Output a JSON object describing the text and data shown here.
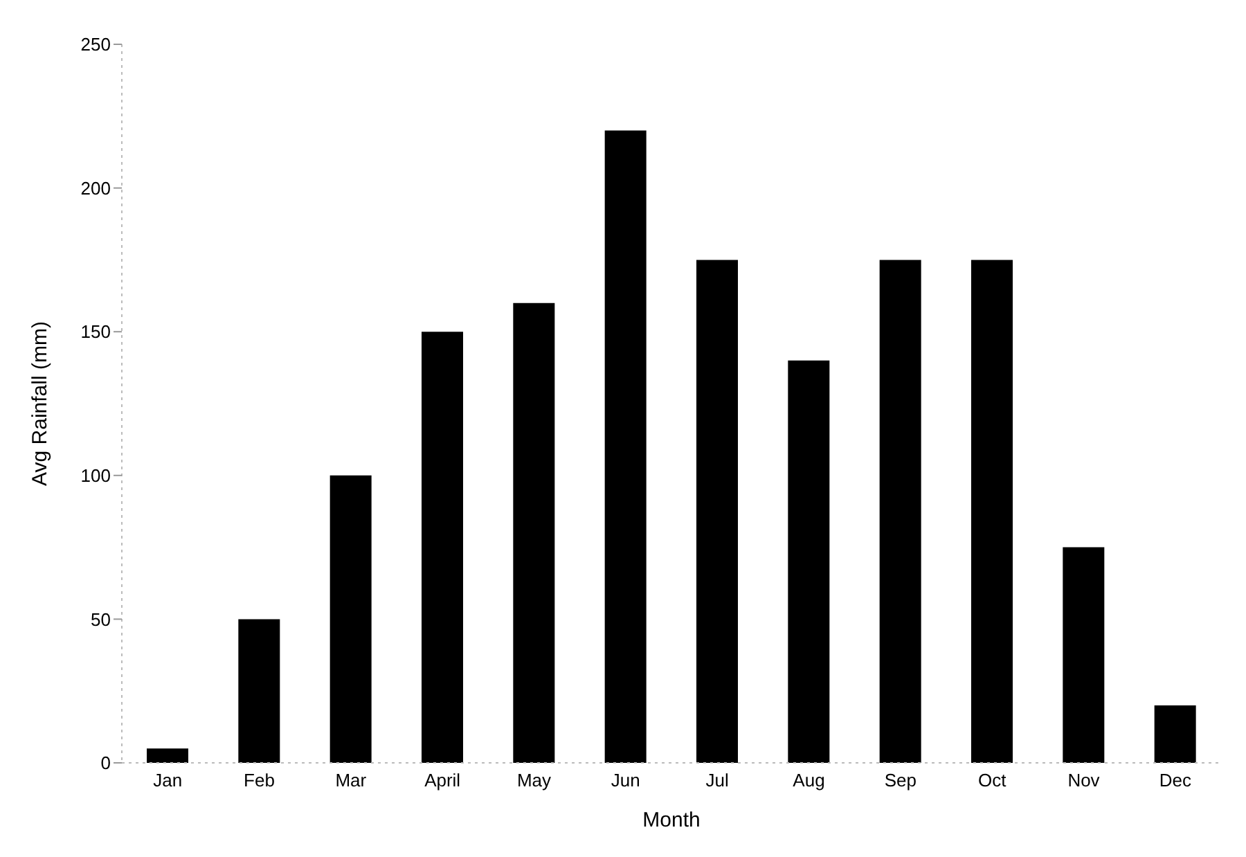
{
  "chart_data": {
    "type": "bar",
    "xlabel": "Month",
    "ylabel": "Avg Rainfall (mm)",
    "categories": [
      "Jan",
      "Feb",
      "Mar",
      "April",
      "May",
      "Jun",
      "Jul",
      "Aug",
      "Sep",
      "Oct",
      "Nov",
      "Dec"
    ],
    "values": [
      5,
      50,
      100,
      150,
      160,
      220,
      175,
      140,
      175,
      175,
      75,
      20
    ],
    "color": "#000000",
    "ylim": [
      0,
      250
    ],
    "yticks": [
      0,
      50,
      100,
      150,
      200,
      250
    ],
    "grid": false
  }
}
